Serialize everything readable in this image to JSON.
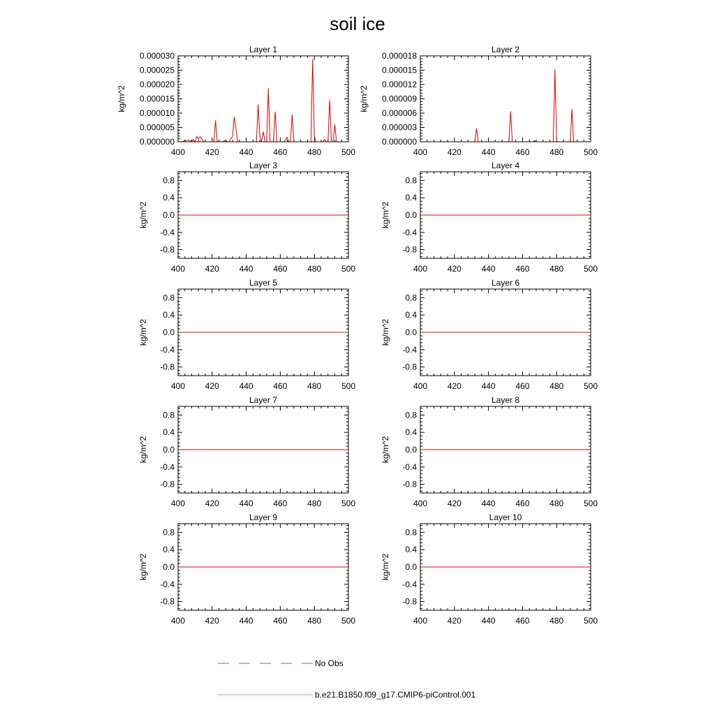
{
  "title": "soil ice",
  "legend": {
    "obs_label": "No Obs",
    "obs_color": "#6666cc",
    "model_label": "b.e21.B1850.f09_g17.CMIP6-piControl.001",
    "model_color": "#ff8080"
  },
  "line_color": "#e00000",
  "chart_data": [
    {
      "type": "line",
      "title": "Layer 1",
      "ylabel": "kg/m^2",
      "xlim": [
        400,
        500
      ],
      "ylim": [
        0,
        3e-05
      ],
      "x_ticks": [
        "400",
        "420",
        "440",
        "460",
        "480",
        "500"
      ],
      "y_ticks": [
        "0.000000",
        "0.000005",
        "0.000010",
        "0.000015",
        "0.000020",
        "0.000025",
        "0.000030"
      ],
      "x": [
        400,
        402,
        404,
        406,
        408,
        409,
        410,
        411,
        412,
        413,
        414,
        415,
        416,
        418,
        420,
        421,
        422,
        423,
        424,
        426,
        428,
        429,
        430,
        432,
        433,
        434,
        435,
        436,
        438,
        440,
        442,
        444,
        446,
        447,
        448,
        449,
        450,
        451,
        452,
        453,
        454,
        455,
        456,
        457,
        458,
        459,
        460,
        462,
        464,
        465,
        466,
        467,
        468,
        470,
        472,
        474,
        476,
        477,
        478,
        479,
        480,
        481,
        482,
        484,
        485,
        486,
        487,
        488,
        489,
        490,
        491,
        492,
        493,
        494,
        496,
        498,
        500
      ],
      "values": [
        0,
        0,
        3e-07,
        6e-07,
        0,
        8e-07,
        0,
        1.8e-06,
        1e-06,
        1.7e-06,
        1e-06,
        0,
        0,
        0,
        0,
        0,
        7.5e-06,
        0,
        0,
        0,
        5e-07,
        0,
        0,
        2e-06,
        8.7e-06,
        4.5e-06,
        0,
        0,
        0,
        0,
        0,
        0,
        0,
        1.3e-05,
        2e-06,
        0,
        3.5e-06,
        0,
        0,
        1.87e-05,
        0,
        0,
        0,
        1.05e-05,
        0,
        0,
        0,
        0,
        1.5e-06,
        0,
        5e-07,
        9.5e-06,
        0,
        0,
        0,
        0,
        0,
        0,
        0,
        2.89e-05,
        2e-06,
        0,
        0,
        0,
        0,
        8e-07,
        0,
        0,
        1.46e-05,
        0,
        0,
        6e-06,
        0,
        0,
        0,
        0,
        0
      ],
      "series_name": "b.e21.B1850.f09_g17.CMIP6-piControl.001"
    },
    {
      "type": "line",
      "title": "Layer 2",
      "ylabel": "kg/m^2",
      "xlim": [
        400,
        500
      ],
      "ylim": [
        0,
        1.8e-05
      ],
      "x_ticks": [
        "400",
        "420",
        "440",
        "460",
        "480",
        "500"
      ],
      "y_ticks": [
        "0.000000",
        "0.000003",
        "0.000006",
        "0.000009",
        "0.000012",
        "0.000015",
        "0.000018"
      ],
      "x": [
        400,
        420,
        432,
        433,
        434,
        452,
        453,
        454,
        466,
        467,
        468,
        478,
        479,
        480,
        488,
        489,
        490,
        500
      ],
      "values": [
        0,
        0,
        0,
        2.8e-06,
        0,
        0,
        6.4e-06,
        0,
        0,
        2e-07,
        0,
        0,
        1.51e-05,
        0,
        0,
        6.8e-06,
        0,
        0
      ],
      "series_name": "b.e21.B1850.f09_g17.CMIP6-piControl.001"
    },
    {
      "type": "line",
      "title": "Layer 3",
      "ylabel": "kg/m^2",
      "xlim": [
        400,
        500
      ],
      "ylim": [
        -1,
        1
      ],
      "x_ticks": [
        "400",
        "420",
        "440",
        "460",
        "480",
        "500"
      ],
      "y_ticks": [
        "-0.8",
        "-0.4",
        "0.0",
        "0.4",
        "0.8"
      ],
      "x": [
        400,
        500
      ],
      "values": [
        0,
        0
      ],
      "series_name": "b.e21.B1850.f09_g17.CMIP6-piControl.001"
    },
    {
      "type": "line",
      "title": "Layer 4",
      "ylabel": "kg/m^2",
      "xlim": [
        400,
        500
      ],
      "ylim": [
        -1,
        1
      ],
      "x_ticks": [
        "400",
        "420",
        "440",
        "460",
        "480",
        "500"
      ],
      "y_ticks": [
        "-0.8",
        "-0.4",
        "0.0",
        "0.4",
        "0.8"
      ],
      "x": [
        400,
        500
      ],
      "values": [
        0,
        0
      ],
      "series_name": "b.e21.B1850.f09_g17.CMIP6-piControl.001"
    },
    {
      "type": "line",
      "title": "Layer 5",
      "ylabel": "kg/m^2",
      "xlim": [
        400,
        500
      ],
      "ylim": [
        -1,
        1
      ],
      "x_ticks": [
        "400",
        "420",
        "440",
        "460",
        "480",
        "500"
      ],
      "y_ticks": [
        "-0.8",
        "-0.4",
        "0.0",
        "0.4",
        "0.8"
      ],
      "x": [
        400,
        500
      ],
      "values": [
        0,
        0
      ],
      "series_name": "b.e21.B1850.f09_g17.CMIP6-piControl.001"
    },
    {
      "type": "line",
      "title": "Layer 6",
      "ylabel": "kg/m^2",
      "xlim": [
        400,
        500
      ],
      "ylim": [
        -1,
        1
      ],
      "x_ticks": [
        "400",
        "420",
        "440",
        "460",
        "480",
        "500"
      ],
      "y_ticks": [
        "-0.8",
        "-0.4",
        "0.0",
        "0.4",
        "0.8"
      ],
      "x": [
        400,
        500
      ],
      "values": [
        0,
        0
      ],
      "series_name": "b.e21.B1850.f09_g17.CMIP6-piControl.001"
    },
    {
      "type": "line",
      "title": "Layer 7",
      "ylabel": "kg/m^2",
      "xlim": [
        400,
        500
      ],
      "ylim": [
        -1,
        1
      ],
      "x_ticks": [
        "400",
        "420",
        "440",
        "460",
        "480",
        "500"
      ],
      "y_ticks": [
        "-0.8",
        "-0.4",
        "0.0",
        "0.4",
        "0.8"
      ],
      "x": [
        400,
        500
      ],
      "values": [
        0,
        0
      ],
      "series_name": "b.e21.B1850.f09_g17.CMIP6-piControl.001"
    },
    {
      "type": "line",
      "title": "Layer 8",
      "ylabel": "kg/m^2",
      "xlim": [
        400,
        500
      ],
      "ylim": [
        -1,
        1
      ],
      "x_ticks": [
        "400",
        "420",
        "440",
        "460",
        "480",
        "500"
      ],
      "y_ticks": [
        "-0.8",
        "-0.4",
        "0.0",
        "0.4",
        "0.8"
      ],
      "x": [
        400,
        500
      ],
      "values": [
        0,
        0
      ],
      "series_name": "b.e21.B1850.f09_g17.CMIP6-piControl.001"
    },
    {
      "type": "line",
      "title": "Layer 9",
      "ylabel": "kg/m^2",
      "xlim": [
        400,
        500
      ],
      "ylim": [
        -1,
        1
      ],
      "x_ticks": [
        "400",
        "420",
        "440",
        "460",
        "480",
        "500"
      ],
      "y_ticks": [
        "-0.8",
        "-0.4",
        "0.0",
        "0.4",
        "0.8"
      ],
      "x": [
        400,
        500
      ],
      "values": [
        0,
        0
      ],
      "series_name": "b.e21.B1850.f09_g17.CMIP6-piControl.001"
    },
    {
      "type": "line",
      "title": "Layer 10",
      "ylabel": "kg/m^2",
      "xlim": [
        400,
        500
      ],
      "ylim": [
        -1,
        1
      ],
      "x_ticks": [
        "400",
        "420",
        "440",
        "460",
        "480",
        "500"
      ],
      "y_ticks": [
        "-0.8",
        "-0.4",
        "0.0",
        "0.4",
        "0.8"
      ],
      "x": [
        400,
        500
      ],
      "values": [
        0,
        0
      ],
      "series_name": "b.e21.B1850.f09_g17.CMIP6-piControl.001"
    }
  ]
}
